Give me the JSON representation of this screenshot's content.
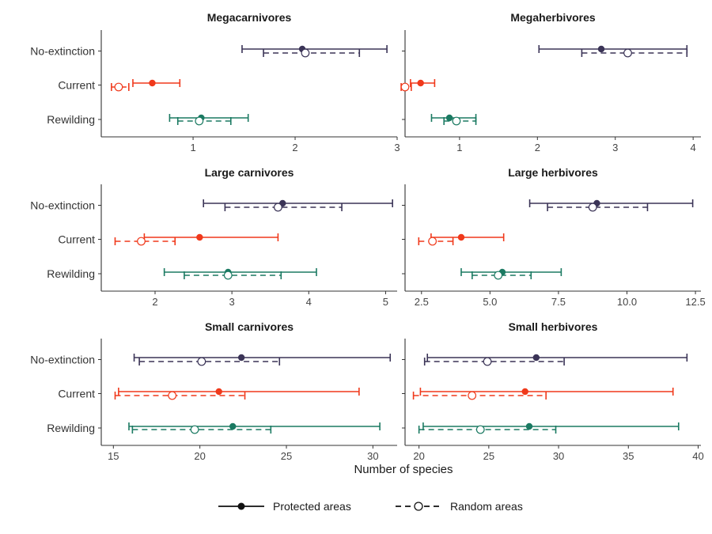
{
  "chart_data": {
    "type": "forest-errorbar",
    "xlabel": "Number of species",
    "categories": [
      "No-extinction",
      "Current",
      "Rewilding"
    ],
    "colors": {
      "No-extinction": "#3b3457",
      "Current": "#f0391b",
      "Rewilding": "#1b7a62"
    },
    "legend": {
      "placement": "bottom",
      "entries": [
        {
          "name": "Protected areas",
          "linestyle": "solid",
          "marker": "filled-circle"
        },
        {
          "name": "Random areas",
          "linestyle": "dashed",
          "marker": "open-circle"
        }
      ]
    },
    "panels": [
      {
        "title": "Megacarnivores",
        "xlim": [
          0.1,
          3.0
        ],
        "xticks": [
          1,
          2,
          3
        ],
        "xticklabels": [
          "1",
          "2",
          "3"
        ],
        "series": [
          {
            "category": "No-extinction",
            "protected": {
              "mean": 2.07,
              "low": 1.48,
              "high": 2.9
            },
            "random": {
              "mean": 2.1,
              "low": 1.69,
              "high": 2.63
            }
          },
          {
            "category": "Current",
            "protected": {
              "mean": 0.6,
              "low": 0.41,
              "high": 0.87
            },
            "random": {
              "mean": 0.27,
              "low": 0.2,
              "high": 0.37
            }
          },
          {
            "category": "Rewilding",
            "protected": {
              "mean": 1.08,
              "low": 0.77,
              "high": 1.54
            },
            "random": {
              "mean": 1.06,
              "low": 0.85,
              "high": 1.37
            }
          }
        ]
      },
      {
        "title": "Megaherbivores",
        "xlim": [
          0.3,
          4.1
        ],
        "xticks": [
          1,
          2,
          3,
          4
        ],
        "xticklabels": [
          "1",
          "2",
          "3",
          "4"
        ],
        "series": [
          {
            "category": "No-extinction",
            "protected": {
              "mean": 2.82,
              "low": 2.02,
              "high": 3.92
            },
            "random": {
              "mean": 3.16,
              "low": 2.57,
              "high": 3.92
            }
          },
          {
            "category": "Current",
            "protected": {
              "mean": 0.5,
              "low": 0.37,
              "high": 0.68
            },
            "random": {
              "mean": 0.3,
              "low": 0.25,
              "high": 0.38
            }
          },
          {
            "category": "Rewilding",
            "protected": {
              "mean": 0.87,
              "low": 0.64,
              "high": 1.21
            },
            "random": {
              "mean": 0.96,
              "low": 0.8,
              "high": 1.21
            }
          }
        ]
      },
      {
        "title": "Large carnivores",
        "xlim": [
          1.3,
          5.15
        ],
        "xticks": [
          2,
          3,
          4,
          5
        ],
        "xticklabels": [
          "2",
          "3",
          "4",
          "5"
        ],
        "series": [
          {
            "category": "No-extinction",
            "protected": {
              "mean": 3.66,
              "low": 2.63,
              "high": 5.09
            },
            "random": {
              "mean": 3.6,
              "low": 2.91,
              "high": 4.43
            }
          },
          {
            "category": "Current",
            "protected": {
              "mean": 2.58,
              "low": 1.86,
              "high": 3.6
            },
            "random": {
              "mean": 1.82,
              "low": 1.48,
              "high": 2.26
            }
          },
          {
            "category": "Rewilding",
            "protected": {
              "mean": 2.95,
              "low": 2.12,
              "high": 4.1
            },
            "random": {
              "mean": 2.95,
              "low": 2.38,
              "high": 3.64
            }
          }
        ]
      },
      {
        "title": "Large herbivores",
        "xlim": [
          1.9,
          12.7
        ],
        "xticks": [
          2.5,
          5.0,
          7.5,
          10.0,
          12.5
        ],
        "xticklabels": [
          "2.5",
          "5.0",
          "7.5",
          "10.0",
          "12.5"
        ],
        "series": [
          {
            "category": "No-extinction",
            "protected": {
              "mean": 8.9,
              "low": 6.45,
              "high": 12.4
            },
            "random": {
              "mean": 8.75,
              "low": 7.1,
              "high": 10.75
            }
          },
          {
            "category": "Current",
            "protected": {
              "mean": 3.95,
              "low": 2.85,
              "high": 5.5
            },
            "random": {
              "mean": 2.9,
              "low": 2.4,
              "high": 3.65
            }
          },
          {
            "category": "Rewilding",
            "protected": {
              "mean": 5.45,
              "low": 3.95,
              "high": 7.6
            },
            "random": {
              "mean": 5.3,
              "low": 4.35,
              "high": 6.5
            }
          }
        ]
      },
      {
        "title": "Small carnivores",
        "xlim": [
          14.3,
          31.4
        ],
        "xticks": [
          15,
          20,
          25,
          30
        ],
        "xticklabels": [
          "15",
          "20",
          "25",
          "30"
        ],
        "series": [
          {
            "category": "No-extinction",
            "protected": {
              "mean": 22.4,
              "low": 16.2,
              "high": 31.0
            },
            "random": {
              "mean": 20.1,
              "low": 16.5,
              "high": 24.6
            }
          },
          {
            "category": "Current",
            "protected": {
              "mean": 21.1,
              "low": 15.3,
              "high": 29.2
            },
            "random": {
              "mean": 18.4,
              "low": 15.1,
              "high": 22.6
            }
          },
          {
            "category": "Rewilding",
            "protected": {
              "mean": 21.9,
              "low": 15.9,
              "high": 30.4
            },
            "random": {
              "mean": 19.7,
              "low": 16.1,
              "high": 24.1
            }
          }
        ]
      },
      {
        "title": "Small herbivores",
        "xlim": [
          19.0,
          40.2
        ],
        "xticks": [
          20,
          25,
          30,
          35,
          40
        ],
        "xticklabels": [
          "20",
          "25",
          "30",
          "35",
          "40"
        ],
        "series": [
          {
            "category": "No-extinction",
            "protected": {
              "mean": 28.4,
              "low": 20.6,
              "high": 39.2
            },
            "random": {
              "mean": 24.9,
              "low": 20.4,
              "high": 30.4
            }
          },
          {
            "category": "Current",
            "protected": {
              "mean": 27.6,
              "low": 20.1,
              "high": 38.2
            },
            "random": {
              "mean": 23.8,
              "low": 19.6,
              "high": 29.1
            }
          },
          {
            "category": "Rewilding",
            "protected": {
              "mean": 27.9,
              "low": 20.3,
              "high": 38.6
            },
            "random": {
              "mean": 24.4,
              "low": 20.0,
              "high": 29.8
            }
          }
        ]
      }
    ]
  }
}
